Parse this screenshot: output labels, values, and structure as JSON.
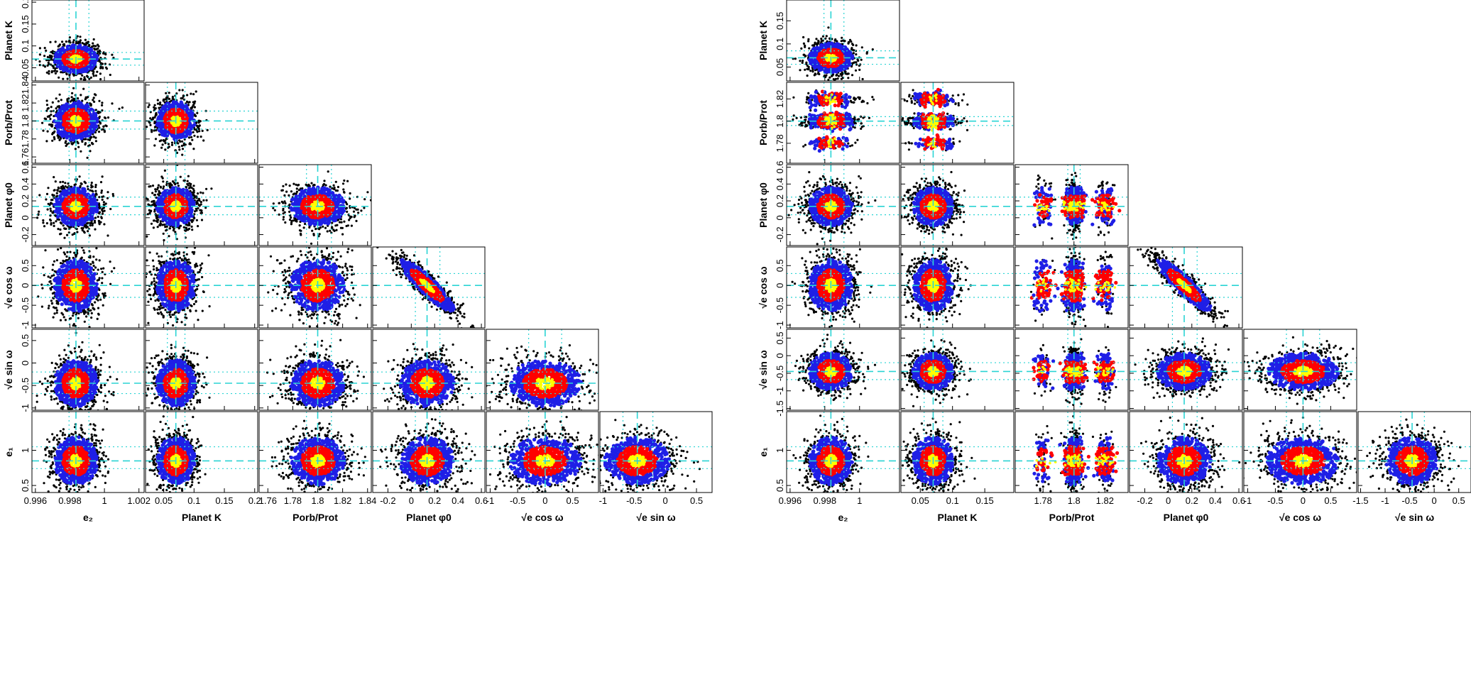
{
  "chart_data": [
    {
      "type": "scatter",
      "title": "",
      "params": [
        {
          "key": "e2",
          "label": "e₂",
          "range": [
            0.9958,
            1.0023
          ],
          "ticks": [
            0.996,
            0.998,
            1,
            1.002
          ],
          "ticklabels": [
            "0.996",
            "0.998",
            "1",
            "1.002"
          ],
          "median": 0.99835,
          "lo": 0.99795,
          "hi": 0.9991
        },
        {
          "key": "K",
          "label": "Planet K",
          "range": [
            0.02,
            0.205
          ],
          "ticks": [
            0.05,
            0.1,
            0.15,
            0.2
          ],
          "ticklabels": [
            "0.05",
            "0.1",
            "0.15",
            "0.2"
          ],
          "median": 0.07,
          "lo": 0.056,
          "hi": 0.085
        },
        {
          "key": "P",
          "label": "Porb/Prot",
          "range": [
            1.753,
            1.843
          ],
          "ticks": [
            1.76,
            1.78,
            1.8,
            1.82,
            1.84
          ],
          "ticklabels": [
            "1.76",
            "1.78",
            "1.8",
            "1.82",
            "1.84"
          ],
          "median": 1.8,
          "lo": 1.791,
          "hi": 1.811
        },
        {
          "key": "phi",
          "label": "Planet φ0",
          "range": [
            -0.33,
            0.63
          ],
          "ticks": [
            -0.2,
            0,
            0.2,
            0.4,
            0.6
          ],
          "ticklabels": [
            "-0.2",
            "0",
            "0.2",
            "0.4",
            "0.6"
          ],
          "median": 0.135,
          "lo": 0.035,
          "hi": 0.245
        },
        {
          "key": "ecos",
          "label": "√e cos ω",
          "range": [
            -1.07,
            0.97
          ],
          "ticks": [
            -1,
            -0.5,
            0,
            0.5
          ],
          "ticklabels": [
            "-1",
            "-0.5",
            "0",
            "0.5"
          ],
          "median": 0.0,
          "lo": -0.3,
          "hi": 0.3
        },
        {
          "key": "esin",
          "label": "√e sin ω",
          "range": [
            -1.05,
            0.75
          ],
          "ticks": [
            -1,
            -0.5,
            0,
            0.5
          ],
          "ticklabels": [
            "-1",
            "-0.5",
            "0",
            "0.5"
          ],
          "median": -0.45,
          "lo": -0.68,
          "hi": -0.2
        },
        {
          "key": "e1",
          "label": "e₁",
          "range": [
            0.4,
            1.55
          ],
          "ticks": [
            0.5,
            1
          ],
          "ticklabels": [
            "0.5",
            "1"
          ],
          "median": 0.85,
          "lo": 0.74,
          "hi": 1.05
        }
      ]
    },
    {
      "type": "scatter",
      "title": "",
      "multimodal_param": "P",
      "P_modes": [
        1.78,
        1.8,
        1.82
      ],
      "params": [
        {
          "key": "e2",
          "label": "e₂",
          "range": [
            0.9958,
            1.0023
          ],
          "ticks": [
            0.996,
            0.998,
            1
          ],
          "ticklabels": [
            "0.996",
            "0.998",
            "1"
          ],
          "median": 0.99835,
          "lo": 0.99795,
          "hi": 0.9991
        },
        {
          "key": "K",
          "label": "Planet K",
          "range": [
            0.02,
            0.195
          ],
          "ticks": [
            0.05,
            0.1,
            0.15
          ],
          "ticklabels": [
            "0.05",
            "0.1",
            "0.15"
          ],
          "median": 0.07,
          "lo": 0.056,
          "hi": 0.085
        },
        {
          "key": "P",
          "label": "Porb/Prot",
          "range": [
            1.762,
            1.835
          ],
          "ticks": [
            1.78,
            1.8,
            1.82
          ],
          "ticklabels": [
            "1.78",
            "1.8",
            "1.82"
          ],
          "median": 1.8,
          "lo": 1.796,
          "hi": 1.804
        },
        {
          "key": "phi",
          "label": "Planet φ0",
          "range": [
            -0.33,
            0.63
          ],
          "ticks": [
            -0.2,
            0,
            0.2,
            0.4,
            0.6
          ],
          "ticklabels": [
            "-0.2",
            "0",
            "0.2",
            "0.4",
            "0.6"
          ],
          "median": 0.135,
          "lo": 0.035,
          "hi": 0.245
        },
        {
          "key": "ecos",
          "label": "√e cos ω",
          "range": [
            -1.07,
            0.97
          ],
          "ticks": [
            -1,
            -0.5,
            0,
            0.5
          ],
          "ticklabels": [
            "-1",
            "-0.5",
            "0",
            "0.5"
          ],
          "median": 0.0,
          "lo": -0.3,
          "hi": 0.3
        },
        {
          "key": "esin",
          "label": "√e sin ω",
          "range": [
            -1.55,
            0.75
          ],
          "ticks": [
            -1.5,
            -1,
            -0.5,
            0,
            0.5
          ],
          "ticklabels": [
            "-1.5",
            "-1",
            "-0.5",
            "0",
            "0.5"
          ],
          "median": -0.45,
          "lo": -0.68,
          "hi": -0.2
        },
        {
          "key": "e1",
          "label": "e₁",
          "range": [
            0.4,
            1.55
          ],
          "ticks": [
            0.5,
            1
          ],
          "ticklabels": [
            "0.5",
            "1"
          ],
          "median": 0.85,
          "lo": 0.74,
          "hi": 1.05
        }
      ]
    }
  ],
  "density_colors": [
    "#000000",
    "#1f1fe6",
    "#ff0000",
    "#ffff00"
  ],
  "median_line_color": "#2ad4d4",
  "quantile_line_color": "#2ad4d4"
}
